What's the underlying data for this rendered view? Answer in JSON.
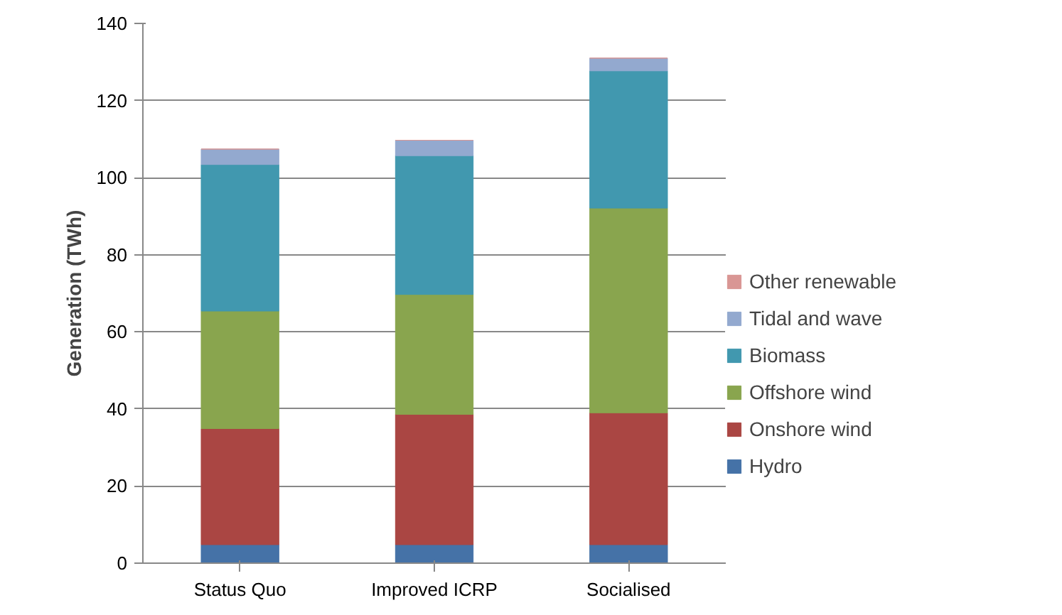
{
  "chart_data": {
    "type": "bar",
    "stacked": true,
    "ylabel": "Generation (TWh)",
    "categories": [
      "Status Quo",
      "Improved ICRP",
      "Socialised"
    ],
    "series": [
      {
        "name": "Hydro",
        "color": "#4572a7",
        "values": [
          4.8,
          4.8,
          4.8
        ]
      },
      {
        "name": "Onshore wind",
        "color": "#aa4643",
        "values": [
          30.1,
          33.8,
          34.2
        ]
      },
      {
        "name": "Offshore wind",
        "color": "#89a54e",
        "values": [
          30.5,
          31.1,
          53.1
        ]
      },
      {
        "name": "Biomass",
        "color": "#4198af",
        "values": [
          38.0,
          36.0,
          35.6
        ]
      },
      {
        "name": "Tidal and wave",
        "color": "#93a9cf",
        "values": [
          4.0,
          4.0,
          3.3
        ]
      },
      {
        "name": "Other renewable",
        "color": "#d99694",
        "values": [
          0,
          0,
          0
        ]
      }
    ],
    "ylim": [
      0,
      140
    ],
    "yticks": [
      0,
      20,
      40,
      60,
      80,
      100,
      120,
      140
    ],
    "grid": "y",
    "legend": "right"
  }
}
